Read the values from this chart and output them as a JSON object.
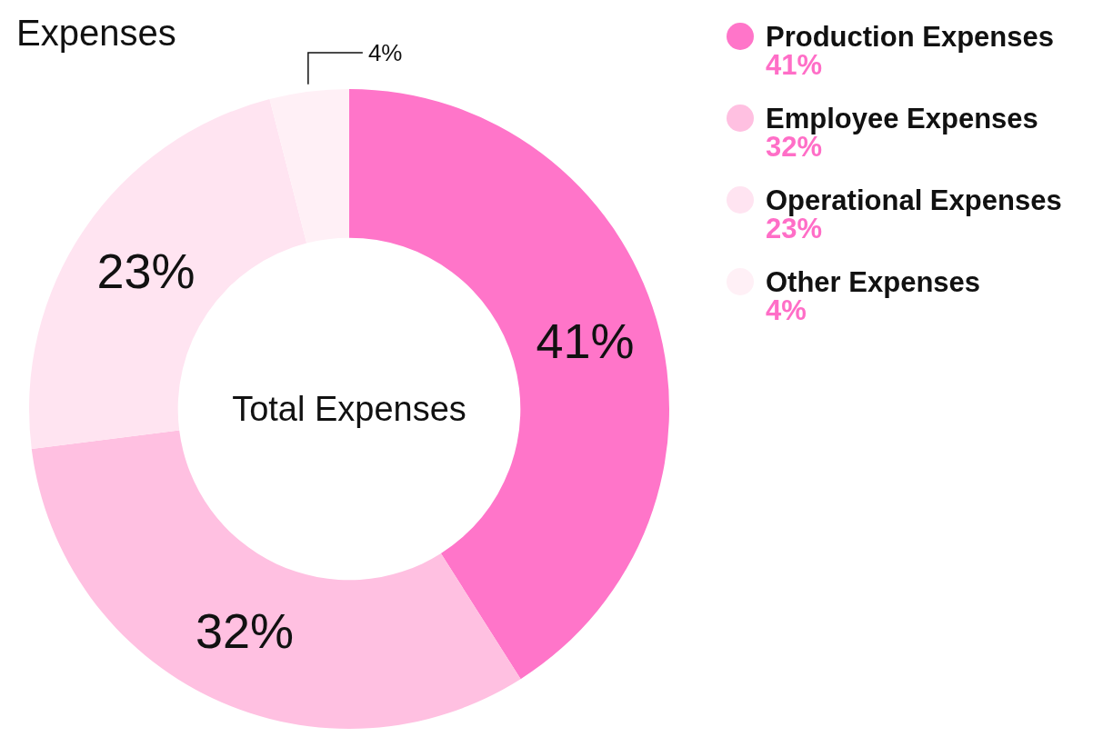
{
  "chart_data": {
    "type": "donut",
    "title": "Expenses",
    "categories": [
      "Production Expenses",
      "Employee Expenses",
      "Operational Expenses",
      "Other Expenses"
    ],
    "values": [
      41,
      32,
      23,
      4
    ],
    "colors": [
      "#ff75c9",
      "#ffc0e1",
      "#ffe4f1",
      "#fff0f6"
    ],
    "value_labels": [
      "41%",
      "32%",
      "23%",
      "4%"
    ],
    "legend": "top right",
    "annotations": [
      "Total Expenses"
    ]
  }
}
